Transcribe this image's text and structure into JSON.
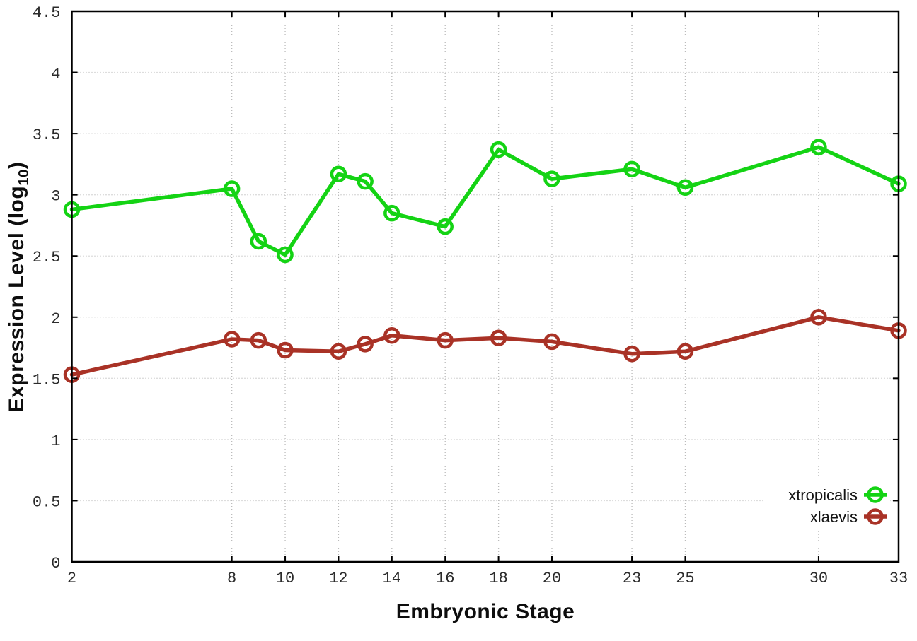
{
  "figure": {
    "xlabel": "Embryonic Stage",
    "ylabel": {
      "prefix": "Expression Level (log",
      "sub": "10",
      "suffix": ")"
    }
  },
  "chart_data": {
    "type": "line",
    "title": "",
    "xlabel": "Embryonic Stage",
    "ylabel": "Expression Level (log10)",
    "xlim": [
      2,
      33
    ],
    "ylim": [
      0,
      4.5
    ],
    "xticks": [
      2,
      8,
      10,
      12,
      14,
      16,
      18,
      20,
      23,
      25,
      30,
      33
    ],
    "yticks": [
      0,
      0.5,
      1,
      1.5,
      2,
      2.5,
      3,
      3.5,
      4,
      4.5
    ],
    "grid": true,
    "legend_position": "inside-bottom-right",
    "x": [
      2,
      8,
      9,
      10,
      12,
      13,
      14,
      16,
      18,
      20,
      23,
      25,
      30,
      33
    ],
    "series": [
      {
        "name": "xtropicalis",
        "color": "#14d314",
        "values": [
          2.88,
          3.05,
          2.62,
          2.51,
          3.17,
          3.11,
          2.85,
          2.74,
          3.37,
          3.13,
          3.21,
          3.06,
          3.39,
          3.09
        ]
      },
      {
        "name": "xlaevis",
        "color": "#a93226",
        "values": [
          1.53,
          1.82,
          1.81,
          1.73,
          1.72,
          1.78,
          1.85,
          1.81,
          1.83,
          1.8,
          1.7,
          1.72,
          2.0,
          1.89
        ]
      }
    ],
    "styles": {
      "grid_color": "#bbbbbb",
      "border_color": "#000000",
      "tick_label_color": "#2b2b2b",
      "background": "#ffffff",
      "marker": "open-circle",
      "line_width": 5.5,
      "marker_radius": 9.5,
      "marker_stroke_width": 4.5
    }
  }
}
